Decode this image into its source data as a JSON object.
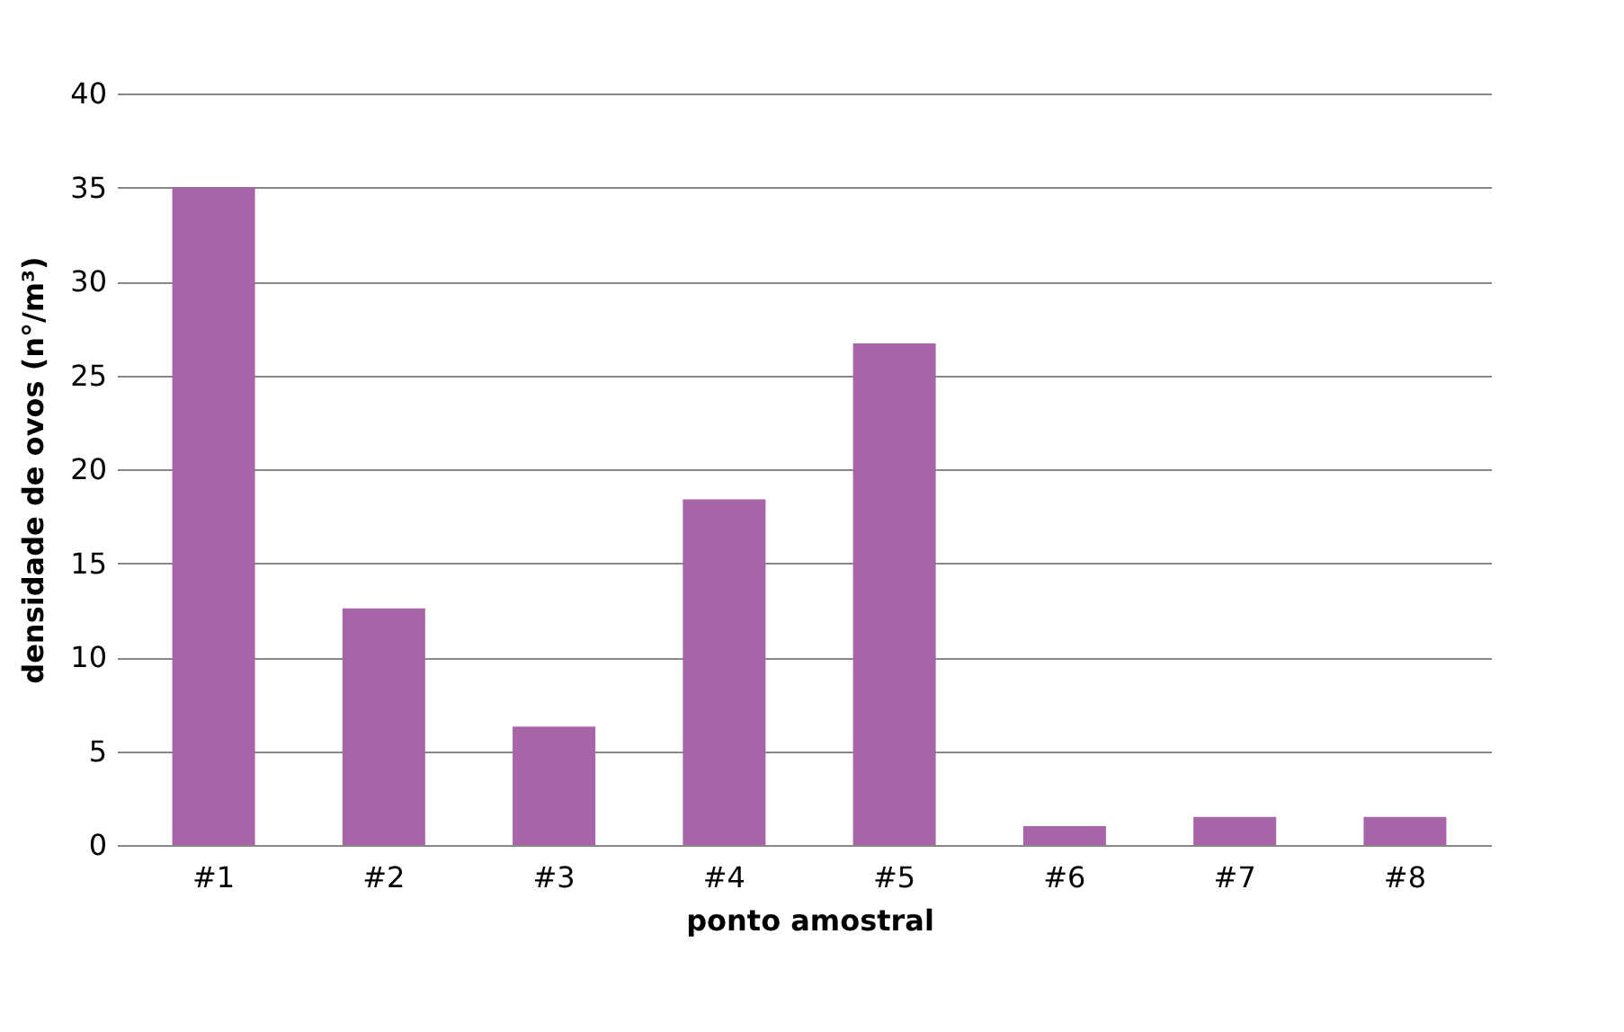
{
  "chart_data": {
    "type": "bar",
    "xlabel": "ponto amostral",
    "ylabel": "densidade de ovos (n°/m³)",
    "categories": [
      "#1",
      "#2",
      "#3",
      "#4",
      "#5",
      "#6",
      "#7",
      "#8"
    ],
    "values": [
      35.0,
      12.6,
      6.3,
      18.4,
      26.7,
      1.0,
      1.5,
      1.5
    ],
    "color": "#a864a8",
    "ylim": [
      0,
      40
    ],
    "yticks": [
      0,
      5,
      10,
      15,
      20,
      25,
      30,
      35,
      40
    ],
    "grid": "y"
  }
}
